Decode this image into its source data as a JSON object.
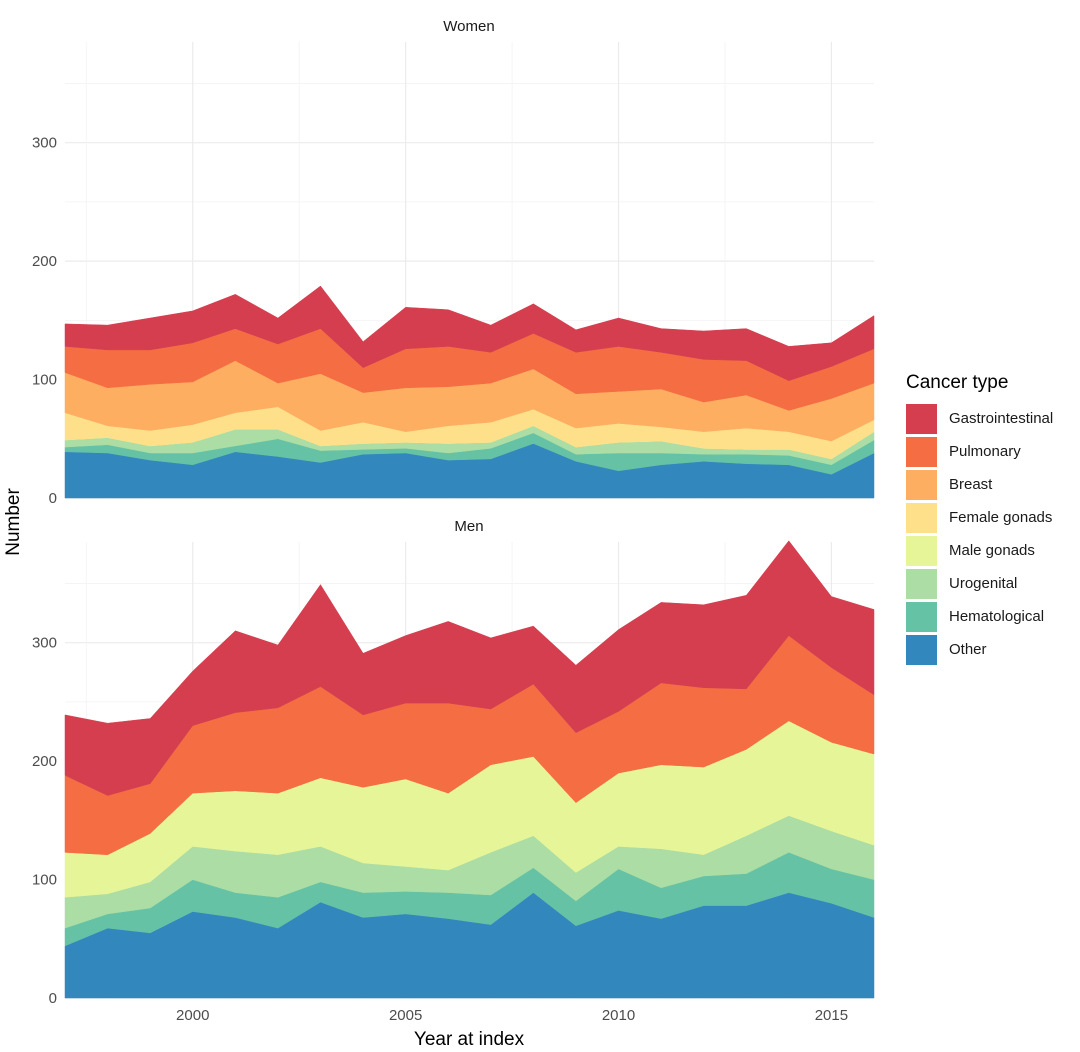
{
  "chart_data": {
    "type": "area",
    "stacked": true,
    "xlabel": "Year at index",
    "ylabel": "Number",
    "x": [
      1997,
      1998,
      1999,
      2000,
      2001,
      2002,
      2003,
      2004,
      2005,
      2006,
      2007,
      2008,
      2009,
      2010,
      2011,
      2012,
      2013,
      2014,
      2015,
      2016
    ],
    "xlim": [
      1997,
      2016
    ],
    "x_ticks": [
      2000,
      2005,
      2010,
      2015
    ],
    "ylim": [
      0,
      385
    ],
    "y_ticks": [
      0,
      100,
      200,
      300
    ],
    "grid": true,
    "legend": {
      "title": "Cancer type",
      "position": "right",
      "entries": [
        {
          "name": "Gastrointestinal",
          "color": "#D53E4F"
        },
        {
          "name": "Pulmonary",
          "color": "#F46D43"
        },
        {
          "name": "Breast",
          "color": "#FDAE61"
        },
        {
          "name": "Female gonads",
          "color": "#FEE08B"
        },
        {
          "name": "Male gonads",
          "color": "#E6F598"
        },
        {
          "name": "Urogenital",
          "color": "#ABDDA4"
        },
        {
          "name": "Hematological",
          "color": "#66C2A5"
        },
        {
          "name": "Other",
          "color": "#3288BD"
        }
      ]
    },
    "stack_order_bottom_to_top": [
      "Other",
      "Hematological",
      "Urogenital",
      "Male gonads",
      "Female gonads",
      "Breast",
      "Pulmonary",
      "Gastrointestinal"
    ],
    "panels": [
      {
        "title": "Women",
        "series": [
          {
            "name": "Other",
            "values": [
              39,
              38,
              32,
              28,
              39,
              35,
              30,
              37,
              38,
              32,
              33,
              46,
              31,
              23,
              28,
              31,
              29,
              28,
              20,
              38
            ]
          },
          {
            "name": "Hematological",
            "values": [
              4,
              7,
              6,
              10,
              5,
              15,
              10,
              4,
              4,
              6,
              9,
              9,
              6,
              15,
              10,
              6,
              8,
              8,
              8,
              11
            ]
          },
          {
            "name": "Urogenital",
            "values": [
              6,
              6,
              6,
              9,
              14,
              8,
              4,
              5,
              5,
              8,
              5,
              6,
              6,
              9,
              10,
              5,
              4,
              5,
              5,
              7
            ]
          },
          {
            "name": "Male gonads",
            "values": [
              0,
              0,
              0,
              0,
              0,
              0,
              0,
              0,
              0,
              0,
              0,
              0,
              0,
              0,
              0,
              0,
              0,
              0,
              0,
              0
            ]
          },
          {
            "name": "Female gonads",
            "values": [
              23,
              10,
              13,
              15,
              14,
              19,
              13,
              18,
              9,
              15,
              17,
              14,
              16,
              16,
              12,
              14,
              18,
              15,
              15,
              10
            ]
          },
          {
            "name": "Breast",
            "values": [
              34,
              32,
              39,
              36,
              44,
              20,
              48,
              25,
              37,
              33,
              33,
              34,
              29,
              27,
              32,
              25,
              28,
              18,
              36,
              31
            ]
          },
          {
            "name": "Pulmonary",
            "values": [
              22,
              32,
              29,
              33,
              27,
              33,
              38,
              21,
              33,
              34,
              26,
              30,
              35,
              38,
              31,
              36,
              29,
              25,
              27,
              29
            ]
          },
          {
            "name": "Gastrointestinal",
            "values": [
              19,
              21,
              27,
              27,
              29,
              22,
              36,
              22,
              35,
              31,
              23,
              25,
              19,
              24,
              20,
              24,
              27,
              29,
              20,
              28
            ]
          }
        ]
      },
      {
        "title": "Men",
        "series": [
          {
            "name": "Other",
            "values": [
              44,
              59,
              55,
              73,
              68,
              59,
              81,
              68,
              71,
              67,
              62,
              89,
              61,
              74,
              67,
              78,
              78,
              89,
              80,
              68
            ]
          },
          {
            "name": "Hematological",
            "values": [
              15,
              12,
              21,
              27,
              21,
              26,
              17,
              21,
              19,
              22,
              25,
              21,
              21,
              35,
              26,
              25,
              27,
              34,
              29,
              32
            ]
          },
          {
            "name": "Urogenital",
            "values": [
              26,
              17,
              22,
              28,
              35,
              36,
              30,
              25,
              21,
              19,
              36,
              27,
              24,
              19,
              33,
              18,
              32,
              31,
              32,
              29
            ]
          },
          {
            "name": "Male gonads",
            "values": [
              38,
              33,
              41,
              45,
              51,
              52,
              58,
              64,
              74,
              65,
              74,
              67,
              59,
              62,
              71,
              74,
              73,
              80,
              75,
              77
            ]
          },
          {
            "name": "Female gonads",
            "values": [
              0,
              0,
              0,
              0,
              0,
              0,
              0,
              0,
              0,
              0,
              0,
              0,
              0,
              0,
              0,
              0,
              0,
              0,
              0,
              0
            ]
          },
          {
            "name": "Breast",
            "values": [
              0,
              0,
              0,
              0,
              0,
              0,
              0,
              0,
              0,
              0,
              0,
              0,
              0,
              0,
              0,
              0,
              0,
              0,
              0,
              0
            ]
          },
          {
            "name": "Pulmonary",
            "values": [
              65,
              50,
              42,
              57,
              66,
              72,
              77,
              61,
              64,
              76,
              47,
              61,
              59,
              52,
              69,
              67,
              51,
              72,
              63,
              50
            ]
          },
          {
            "name": "Gastrointestinal",
            "values": [
              51,
              61,
              55,
              46,
              69,
              53,
              86,
              52,
              57,
              69,
              60,
              49,
              57,
              69,
              68,
              70,
              79,
              80,
              60,
              72
            ]
          }
        ]
      }
    ]
  }
}
